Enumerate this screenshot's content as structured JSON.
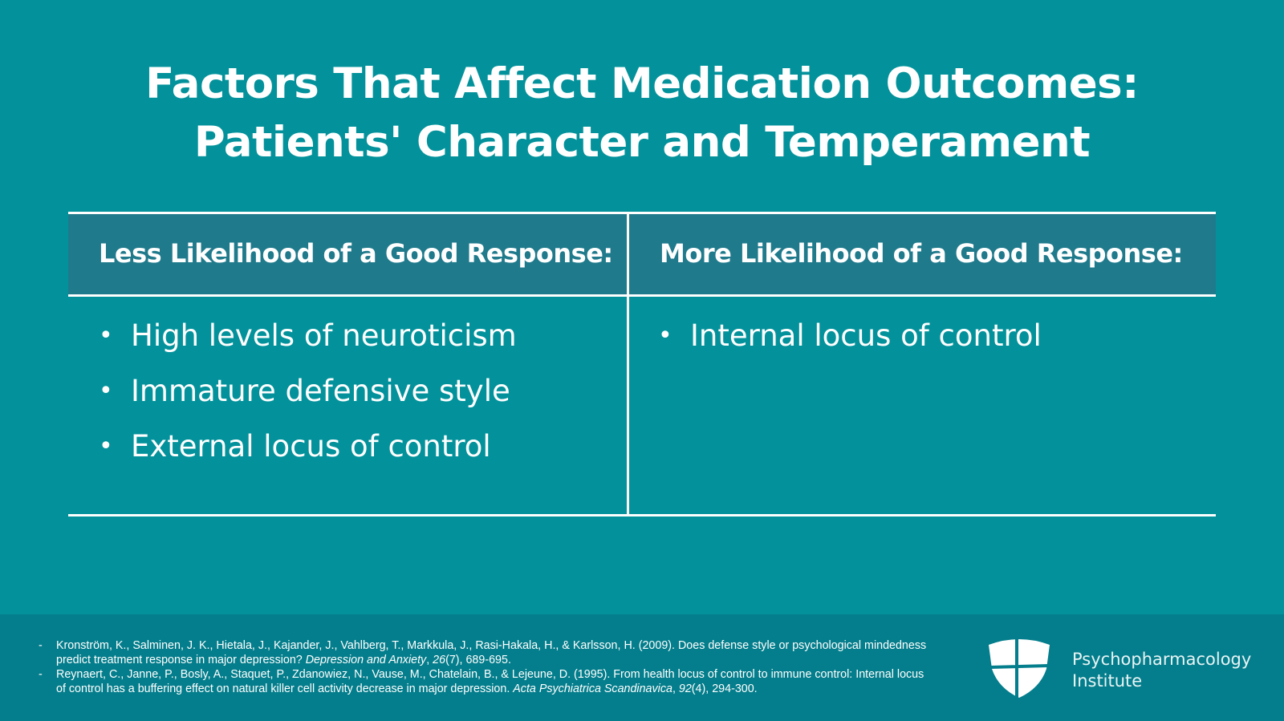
{
  "title": {
    "line1": "Factors That Affect Medication Outcomes:",
    "line2": "Patients' Character and Temperament"
  },
  "table": {
    "left": {
      "header": "Less Likelihood of a Good Response:",
      "items": [
        "High levels of neuroticism",
        "Immature defensive style",
        "External locus of control"
      ]
    },
    "right": {
      "header": "More Likelihood of a Good Response:",
      "items": [
        "Internal locus of control"
      ]
    }
  },
  "footer": {
    "references": [
      {
        "dash": "-",
        "pre": "Kronström, K., Salminen, J. K., Hietala, J., Kajander, J., Vahlberg, T., Markkula, J., Rasi-Hakala, H., & Karlsson, H. (2009). Does defense style or psychological mindedness predict treatment response in major depression? ",
        "journal": "Depression and Anxiety",
        "sep": ", ",
        "vol": "26",
        "post": "(7), 689-695."
      },
      {
        "dash": "-",
        "pre": "Reynaert, C., Janne, P., Bosly, A., Staquet, P., Zdanowiez, N., Vause, M., Chatelain, B., & Lejeune, D. (1995). From health locus of control to immune control: Internal locus of control has a buffering effect on natural killer cell activity decrease in major depression. ",
        "journal": "Acta Psychiatrica Scandinavica",
        "sep": ", ",
        "vol": "92",
        "post": "(4), 294-300."
      }
    ],
    "brand": {
      "line1": "Psychopharmacology",
      "line2": "Institute"
    }
  }
}
